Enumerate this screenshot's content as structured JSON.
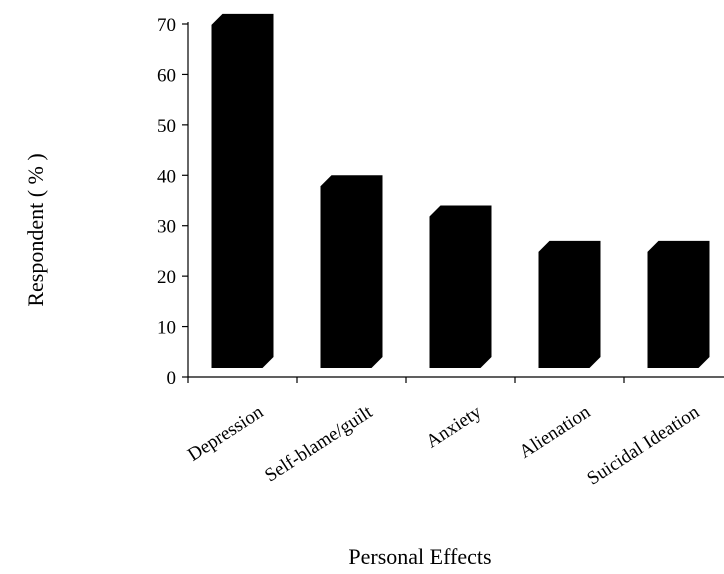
{
  "chart_data": {
    "type": "bar",
    "categories": [
      "Depression",
      "Self-blame/guilt",
      "Anxiety",
      "Alienation",
      "Suicidal Ideation"
    ],
    "values": [
      72,
      40,
      34,
      27,
      27
    ],
    "title": "",
    "xlabel": "Personal Effects",
    "ylabel": "Respondent ( % )",
    "ylim": [
      0,
      70
    ],
    "yticks": [
      "0",
      "10",
      "20",
      "30",
      "40",
      "50",
      "60",
      "70"
    ],
    "grid": false,
    "bar_color": "#000000"
  }
}
